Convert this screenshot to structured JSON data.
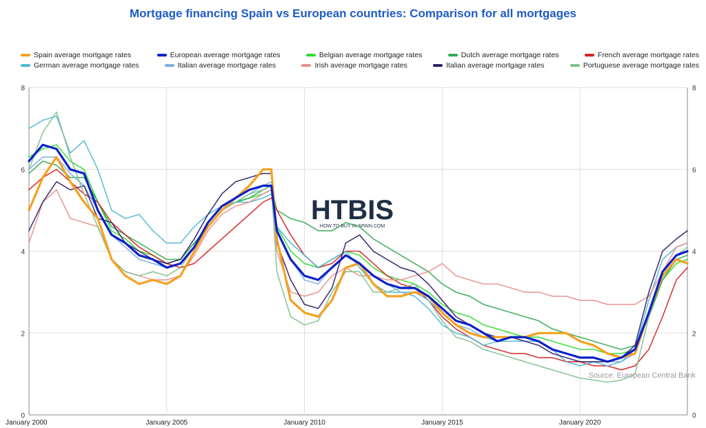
{
  "chart_data": {
    "type": "line",
    "title": "Mortgage financing Spain vs European countries: Comparison for all mortgages",
    "source_note": "Source: European Central Bank",
    "watermark": {
      "name": "HTBIS",
      "tagline": "HOW TO BUY IN SPAIN.COM"
    },
    "x_ticks": [
      "January 2000",
      "January 2005",
      "January 2010",
      "January 2015",
      "January 2020"
    ],
    "y_ticks": [
      "0",
      "2",
      "4",
      "6",
      "8"
    ],
    "ylim": [
      0,
      8
    ],
    "xlim": [
      2000,
      2023.9
    ],
    "grid": true,
    "legend_position": "top",
    "series": [
      {
        "name": "Spain average mortgage rates",
        "color": "#f5a01e",
        "width": 3.2,
        "x": [
          2000,
          2000.5,
          2001,
          2001.5,
          2002,
          2002.5,
          2003,
          2003.5,
          2004,
          2004.5,
          2005,
          2005.5,
          2006,
          2006.5,
          2007,
          2007.5,
          2008,
          2008.5,
          2008.8,
          2009,
          2009.5,
          2010,
          2010.5,
          2011,
          2011.5,
          2012,
          2012.5,
          2013,
          2013.5,
          2014,
          2014.5,
          2015,
          2015.5,
          2016,
          2016.5,
          2017,
          2017.5,
          2018,
          2018.5,
          2019,
          2019.5,
          2020,
          2020.5,
          2021,
          2021.5,
          2022,
          2022.5,
          2023,
          2023.5,
          2023.9
        ],
        "y": [
          5.0,
          5.8,
          6.3,
          5.7,
          5.2,
          4.8,
          3.8,
          3.4,
          3.2,
          3.3,
          3.2,
          3.4,
          4.0,
          4.6,
          5.0,
          5.3,
          5.6,
          6.0,
          6.0,
          4.3,
          2.8,
          2.5,
          2.4,
          2.8,
          3.6,
          3.7,
          3.2,
          2.9,
          2.9,
          3.0,
          2.9,
          2.5,
          2.2,
          2.0,
          1.9,
          1.9,
          1.9,
          1.9,
          2.0,
          2.0,
          2.0,
          1.8,
          1.7,
          1.5,
          1.4,
          1.5,
          2.5,
          3.4,
          3.8,
          3.7
        ]
      },
      {
        "name": "European average mortgage rates",
        "color": "#0b20c8",
        "width": 3.2,
        "x": [
          2000,
          2000.5,
          2001,
          2001.5,
          2002,
          2002.5,
          2003,
          2003.5,
          2004,
          2004.5,
          2005,
          2005.5,
          2006,
          2006.5,
          2007,
          2007.5,
          2008,
          2008.5,
          2008.8,
          2009,
          2009.5,
          2010,
          2010.5,
          2011,
          2011.5,
          2012,
          2012.5,
          2013,
          2013.5,
          2014,
          2014.5,
          2015,
          2015.5,
          2016,
          2016.5,
          2017,
          2017.5,
          2018,
          2018.5,
          2019,
          2019.5,
          2020,
          2020.5,
          2021,
          2021.5,
          2022,
          2022.5,
          2023,
          2023.5,
          2023.9
        ],
        "y": [
          6.2,
          6.6,
          6.5,
          6.0,
          5.9,
          5.0,
          4.4,
          4.2,
          3.9,
          3.8,
          3.6,
          3.7,
          4.1,
          4.7,
          5.1,
          5.3,
          5.5,
          5.6,
          5.6,
          4.5,
          3.8,
          3.4,
          3.3,
          3.6,
          3.9,
          3.7,
          3.4,
          3.2,
          3.1,
          3.1,
          2.9,
          2.6,
          2.3,
          2.2,
          2.0,
          1.8,
          1.9,
          1.9,
          1.8,
          1.6,
          1.5,
          1.4,
          1.4,
          1.3,
          1.4,
          1.6,
          2.5,
          3.5,
          3.9,
          4.0
        ]
      },
      {
        "name": "Belgian average mortgage rates",
        "color": "#2fdc2f",
        "width": 1.6,
        "x": [
          2000,
          2000.5,
          2001,
          2001.5,
          2002,
          2002.5,
          2003,
          2003.5,
          2004,
          2004.5,
          2005,
          2005.5,
          2006,
          2006.5,
          2007,
          2007.5,
          2008,
          2008.5,
          2008.8,
          2009,
          2009.5,
          2010,
          2010.5,
          2011,
          2011.5,
          2012,
          2012.5,
          2013,
          2013.5,
          2014,
          2014.5,
          2015,
          2015.5,
          2016,
          2016.5,
          2017,
          2017.5,
          2018,
          2018.5,
          2019,
          2019.5,
          2020,
          2020.5,
          2021,
          2021.5,
          2022,
          2022.5,
          2023,
          2023.5,
          2023.9
        ],
        "y": [
          6.3,
          6.5,
          6.6,
          6.2,
          6.0,
          5.2,
          4.5,
          4.3,
          4.0,
          3.9,
          3.7,
          3.8,
          4.2,
          4.6,
          5.0,
          5.2,
          5.3,
          5.4,
          5.5,
          4.6,
          4.0,
          3.7,
          3.6,
          3.8,
          4.0,
          3.9,
          3.6,
          3.4,
          3.3,
          3.2,
          3.0,
          2.7,
          2.5,
          2.4,
          2.2,
          2.1,
          2.0,
          1.9,
          1.9,
          1.8,
          1.7,
          1.6,
          1.6,
          1.5,
          1.5,
          1.6,
          2.4,
          3.3,
          3.7,
          3.8
        ]
      },
      {
        "name": "Dutch average mortgage rates",
        "color": "#34a853",
        "width": 1.6,
        "x": [
          2000,
          2000.5,
          2001,
          2001.5,
          2002,
          2002.5,
          2003,
          2003.5,
          2004,
          2004.5,
          2005,
          2005.5,
          2006,
          2006.5,
          2007,
          2007.5,
          2008,
          2008.5,
          2008.8,
          2009,
          2009.5,
          2010,
          2010.5,
          2011,
          2011.5,
          2012,
          2012.5,
          2013,
          2013.5,
          2014,
          2014.5,
          2015,
          2015.5,
          2016,
          2016.5,
          2017,
          2017.5,
          2018,
          2018.5,
          2019,
          2019.5,
          2020,
          2020.5,
          2021,
          2021.5,
          2022,
          2022.5,
          2023,
          2023.5,
          2023.9
        ],
        "y": [
          5.9,
          6.2,
          6.1,
          5.8,
          5.8,
          5.2,
          4.6,
          4.4,
          4.2,
          4.0,
          3.8,
          3.8,
          4.2,
          4.6,
          5.0,
          5.2,
          5.3,
          5.5,
          5.6,
          5.0,
          4.8,
          4.7,
          4.5,
          4.5,
          4.7,
          4.6,
          4.3,
          4.1,
          3.9,
          3.7,
          3.5,
          3.2,
          3.0,
          2.9,
          2.7,
          2.6,
          2.5,
          2.4,
          2.3,
          2.1,
          2.0,
          1.9,
          1.8,
          1.7,
          1.6,
          1.7,
          2.4,
          3.3,
          3.8,
          3.9
        ]
      },
      {
        "name": "French average mortgage rates",
        "color": "#d42020",
        "width": 1.6,
        "x": [
          2000,
          2000.5,
          2001,
          2001.5,
          2002,
          2002.5,
          2003,
          2003.5,
          2004,
          2004.5,
          2005,
          2005.5,
          2006,
          2006.5,
          2007,
          2007.5,
          2008,
          2008.5,
          2008.8,
          2009,
          2009.5,
          2010,
          2010.5,
          2011,
          2011.5,
          2012,
          2012.5,
          2013,
          2013.5,
          2014,
          2014.5,
          2015,
          2015.5,
          2016,
          2016.5,
          2017,
          2017.5,
          2018,
          2018.5,
          2019,
          2019.5,
          2020,
          2020.5,
          2021,
          2021.5,
          2022,
          2022.5,
          2023,
          2023.5,
          2023.9
        ],
        "y": [
          5.5,
          5.8,
          6.0,
          5.7,
          5.4,
          5.2,
          4.7,
          4.4,
          4.1,
          3.9,
          3.7,
          3.6,
          3.7,
          4.0,
          4.3,
          4.6,
          4.9,
          5.2,
          5.3,
          5.0,
          4.4,
          3.9,
          3.6,
          3.7,
          4.0,
          4.0,
          3.7,
          3.4,
          3.2,
          3.1,
          2.8,
          2.4,
          2.1,
          1.9,
          1.7,
          1.6,
          1.5,
          1.5,
          1.4,
          1.4,
          1.3,
          1.3,
          1.2,
          1.2,
          1.1,
          1.2,
          1.6,
          2.4,
          3.3,
          3.6
        ]
      },
      {
        "name": "German average mortgage rates",
        "color": "#4fb8d0",
        "width": 1.6,
        "x": [
          2000,
          2000.5,
          2001,
          2001.5,
          2002,
          2002.5,
          2003,
          2003.5,
          2004,
          2004.5,
          2005,
          2005.5,
          2006,
          2006.5,
          2007,
          2007.5,
          2008,
          2008.5,
          2008.8,
          2009,
          2009.5,
          2010,
          2010.5,
          2011,
          2011.5,
          2012,
          2012.5,
          2013,
          2013.5,
          2014,
          2014.5,
          2015,
          2015.5,
          2016,
          2016.5,
          2017,
          2017.5,
          2018,
          2018.5,
          2019,
          2019.5,
          2020,
          2020.5,
          2021,
          2021.5,
          2022,
          2022.5,
          2023,
          2023.5,
          2023.9
        ],
        "y": [
          7.0,
          7.2,
          7.3,
          6.4,
          6.7,
          6.0,
          5.0,
          4.8,
          4.9,
          4.5,
          4.2,
          4.2,
          4.6,
          4.9,
          5.1,
          5.2,
          5.2,
          5.3,
          5.4,
          4.6,
          4.2,
          3.9,
          3.6,
          3.8,
          4.0,
          3.6,
          3.2,
          3.0,
          3.0,
          2.9,
          2.6,
          2.2,
          2.0,
          1.9,
          1.7,
          1.8,
          1.8,
          1.8,
          1.8,
          1.6,
          1.3,
          1.2,
          1.3,
          1.2,
          1.3,
          1.6,
          2.8,
          3.8,
          4.1,
          4.2
        ]
      },
      {
        "name": "Italian average mortgage rates",
        "color": "#7aaee4",
        "width": 1.6,
        "x": [
          2000,
          2000.5,
          2001,
          2001.5,
          2002,
          2002.5,
          2003,
          2003.5,
          2004,
          2004.5,
          2005,
          2005.5,
          2006,
          2006.5,
          2007,
          2007.5,
          2008,
          2008.5,
          2008.8,
          2009,
          2009.5,
          2010,
          2010.5,
          2011,
          2011.5,
          2012,
          2012.5,
          2013,
          2013.5,
          2014,
          2014.5,
          2015,
          2015.5,
          2016,
          2016.5,
          2017,
          2017.5,
          2018,
          2018.5,
          2019,
          2019.5,
          2020,
          2020.5,
          2021,
          2021.5,
          2022,
          2022.5,
          2023,
          2023.5,
          2023.9
        ],
        "y": [
          6.0,
          6.3,
          6.3,
          5.9,
          5.6,
          5.0,
          4.4,
          4.1,
          3.8,
          3.7,
          3.6,
          3.7,
          4.1,
          4.6,
          5.0,
          5.2,
          5.4,
          5.6,
          5.7,
          4.5,
          3.8,
          3.3,
          3.2,
          3.6,
          3.9,
          3.7,
          3.4,
          3.2,
          3.0,
          3.0,
          2.8,
          2.5,
          2.2,
          2.1,
          1.9,
          1.8,
          1.9,
          1.9,
          1.8,
          1.6,
          1.5,
          1.4,
          1.4,
          1.3,
          1.3,
          1.5,
          2.5,
          3.5,
          3.9,
          4.0
        ]
      },
      {
        "name": "Irish average mortgage rates",
        "color": "#e8908a",
        "width": 1.6,
        "x": [
          2000,
          2000.5,
          2001,
          2001.5,
          2002,
          2002.5,
          2003,
          2003.5,
          2004,
          2004.5,
          2005,
          2005.5,
          2006,
          2006.5,
          2007,
          2007.5,
          2008,
          2008.5,
          2008.8,
          2009,
          2009.5,
          2010,
          2010.5,
          2011,
          2011.5,
          2012,
          2012.5,
          2013,
          2013.5,
          2014,
          2014.5,
          2015,
          2015.5,
          2016,
          2016.5,
          2017,
          2017.5,
          2018,
          2018.5,
          2019,
          2019.5,
          2020,
          2020.5,
          2021,
          2021.5,
          2022,
          2022.5,
          2023,
          2023.5,
          2023.9
        ],
        "y": [
          4.2,
          5.2,
          5.5,
          4.8,
          4.7,
          4.6,
          3.8,
          3.5,
          3.4,
          3.3,
          3.3,
          3.4,
          3.9,
          4.5,
          4.9,
          5.1,
          5.2,
          5.4,
          5.5,
          4.0,
          3.0,
          2.9,
          3.0,
          3.4,
          3.6,
          3.4,
          3.4,
          3.3,
          3.3,
          3.4,
          3.5,
          3.7,
          3.4,
          3.3,
          3.2,
          3.2,
          3.1,
          3.0,
          3.0,
          2.9,
          2.9,
          2.8,
          2.8,
          2.7,
          2.7,
          2.7,
          2.9,
          3.5,
          4.1,
          4.2
        ]
      },
      {
        "name": "Italian average mortgage rates",
        "color": "#2e1e6b",
        "width": 1.6,
        "x": [
          2000,
          2000.5,
          2001,
          2001.5,
          2002,
          2002.5,
          2003,
          2003.5,
          2004,
          2004.5,
          2005,
          2005.5,
          2006,
          2006.5,
          2007,
          2007.5,
          2008,
          2008.5,
          2008.8,
          2009,
          2009.5,
          2010,
          2010.5,
          2011,
          2011.5,
          2012,
          2012.5,
          2013,
          2013.5,
          2014,
          2014.5,
          2015,
          2015.5,
          2016,
          2016.5,
          2017,
          2017.5,
          2018,
          2018.5,
          2019,
          2019.5,
          2020,
          2020.5,
          2021,
          2021.5,
          2022,
          2022.5,
          2023,
          2023.5,
          2023.9
        ],
        "y": [
          4.5,
          5.2,
          5.7,
          5.5,
          5.6,
          4.8,
          4.7,
          4.2,
          4.0,
          3.8,
          3.7,
          3.8,
          4.3,
          4.9,
          5.4,
          5.7,
          5.8,
          5.9,
          5.9,
          4.2,
          3.3,
          2.7,
          2.6,
          3.1,
          4.2,
          4.4,
          4.0,
          3.8,
          3.6,
          3.5,
          3.2,
          2.8,
          2.4,
          2.2,
          2.0,
          1.9,
          1.9,
          1.8,
          1.7,
          1.5,
          1.4,
          1.3,
          1.3,
          1.3,
          1.4,
          1.7,
          3.0,
          4.0,
          4.3,
          4.5
        ]
      },
      {
        "name": "Portuguese average mortgage rates",
        "color": "#7fbf8f",
        "width": 1.6,
        "x": [
          2000,
          2000.5,
          2001,
          2001.5,
          2002,
          2002.5,
          2003,
          2003.5,
          2004,
          2004.5,
          2005,
          2005.5,
          2006,
          2006.5,
          2007,
          2007.5,
          2008,
          2008.5,
          2008.8,
          2009,
          2009.5,
          2010,
          2010.5,
          2011,
          2011.5,
          2012,
          2012.5,
          2013,
          2013.5,
          2014,
          2014.5,
          2015,
          2015.5,
          2016,
          2016.5,
          2017,
          2017.5,
          2018,
          2018.5,
          2019,
          2019.5,
          2020,
          2020.5,
          2021,
          2021.5,
          2022,
          2022.5,
          2023,
          2023.5,
          2023.9
        ],
        "y": [
          6.0,
          6.9,
          7.4,
          6.3,
          5.4,
          4.6,
          3.8,
          3.5,
          3.4,
          3.5,
          3.4,
          3.6,
          4.1,
          4.6,
          5.0,
          5.2,
          5.4,
          5.5,
          5.6,
          3.5,
          2.4,
          2.2,
          2.3,
          3.0,
          3.5,
          3.5,
          3.0,
          3.0,
          3.1,
          3.2,
          2.8,
          2.3,
          1.9,
          1.8,
          1.6,
          1.5,
          1.4,
          1.3,
          1.2,
          1.1,
          1.0,
          0.9,
          0.85,
          0.8,
          0.85,
          1.0,
          2.4,
          3.5,
          3.9,
          4.1
        ]
      }
    ]
  }
}
